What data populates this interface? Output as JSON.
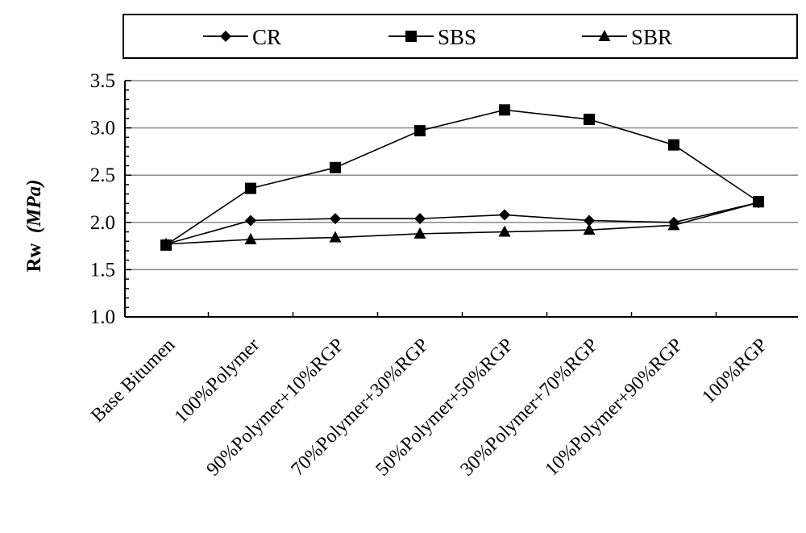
{
  "chart_data": {
    "type": "line",
    "title": "",
    "xlabel": "",
    "ylabel": "Rw",
    "ylabel_unit": "(MPa)",
    "categories": [
      "Base Bitumen",
      "100%Polymer",
      "90%Polymer+10%RGP",
      "70%Polymer+30%RGP",
      "50%Polymer+50%RGP",
      "30%Polymer+70%RGP",
      "10%Polymer+90%RGP",
      "100%RGP"
    ],
    "ylim": [
      1.0,
      3.5
    ],
    "yticks": [
      "1.0",
      "1.5",
      "2.0",
      "2.5",
      "3.0",
      "3.5"
    ],
    "grid": true,
    "legend_position": "top",
    "series": [
      {
        "name": "CR",
        "marker": "diamond",
        "values": [
          1.77,
          2.02,
          2.04,
          2.04,
          2.08,
          2.02,
          2.0,
          2.21
        ]
      },
      {
        "name": "SBS",
        "marker": "square",
        "values": [
          1.76,
          2.36,
          2.58,
          2.97,
          3.19,
          3.09,
          2.82,
          2.22
        ]
      },
      {
        "name": "SBR",
        "marker": "triangle",
        "values": [
          1.77,
          1.82,
          1.84,
          1.88,
          1.9,
          1.92,
          1.97,
          2.21
        ]
      }
    ]
  }
}
